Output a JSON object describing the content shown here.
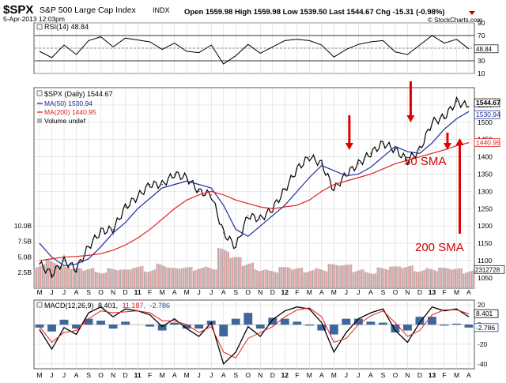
{
  "header": {
    "symbol": "$SPX",
    "name": "S&P 500 Large Cap Index",
    "exchange": "INDX",
    "datetime": "5-Apr-2013 12:03pm",
    "ohlc_text": "Open 1559.98  High 1559.98  Low 1539.50  Last 1544.67  Chg -15.31 (-0.98%)",
    "watermark": "© StockCharts.com"
  },
  "colors": {
    "price": "#000000",
    "ma50": "#1a2e9c",
    "ma200": "#e02020",
    "arrow": "#e00000",
    "macd_hist": "#1c4e8c"
  },
  "chart_data": [
    {
      "type": "line",
      "panel": "rsi",
      "label": "RSI(14) 48.84",
      "ylim": [
        10,
        90
      ],
      "yticks": [
        10,
        30,
        50,
        70,
        90
      ],
      "last_label": "48.84",
      "x": [
        "2010-05",
        "2010-06",
        "2010-07",
        "2010-08",
        "2010-09",
        "2010-10",
        "2010-11",
        "2010-12",
        "2011-01",
        "2011-02",
        "2011-03",
        "2011-04",
        "2011-05",
        "2011-06",
        "2011-07",
        "2011-08",
        "2011-09",
        "2011-10",
        "2011-11",
        "2011-12",
        "2012-01",
        "2012-02",
        "2012-03",
        "2012-04",
        "2012-05",
        "2012-06",
        "2012-07",
        "2012-08",
        "2012-09",
        "2012-10",
        "2012-11",
        "2012-12",
        "2013-01",
        "2013-02",
        "2013-03",
        "2013-04"
      ],
      "values": [
        45,
        35,
        55,
        40,
        62,
        68,
        52,
        66,
        63,
        60,
        48,
        58,
        45,
        43,
        55,
        25,
        38,
        56,
        42,
        52,
        62,
        64,
        62,
        55,
        36,
        48,
        56,
        60,
        62,
        44,
        40,
        55,
        70,
        58,
        64,
        49
      ]
    },
    {
      "type": "line",
      "panel": "price",
      "legend": [
        "$SPX (Daily) 1544.67",
        "MA(50) 1530.94",
        "MA(200) 1440.95",
        "Volume undef"
      ],
      "ylim": [
        1020,
        1600
      ],
      "yticks": [
        1050,
        1100,
        1150,
        1200,
        1250,
        1300,
        1350,
        1400,
        1450,
        1500,
        1550
      ],
      "price_badges": [
        "1544.67",
        "1530.94",
        "1440.95"
      ],
      "volume_ticks": [
        "2.5B",
        "5.0B",
        "7.5B",
        "10.0B"
      ],
      "volume_last": "2312728",
      "x": [
        "2010-05",
        "2010-06",
        "2010-07",
        "2010-08",
        "2010-09",
        "2010-10",
        "2010-11",
        "2010-12",
        "2011-01",
        "2011-02",
        "2011-03",
        "2011-04",
        "2011-05",
        "2011-06",
        "2011-07",
        "2011-08",
        "2011-09",
        "2011-10",
        "2011-11",
        "2011-12",
        "2012-01",
        "2012-02",
        "2012-03",
        "2012-04",
        "2012-05",
        "2012-06",
        "2012-07",
        "2012-08",
        "2012-09",
        "2012-10",
        "2012-11",
        "2012-12",
        "2013-01",
        "2013-02",
        "2013-03",
        "2013-04"
      ],
      "series": [
        {
          "name": "$SPX (Daily) 1544.67",
          "values": [
            1090,
            1060,
            1100,
            1075,
            1140,
            1185,
            1190,
            1255,
            1285,
            1320,
            1320,
            1350,
            1340,
            1300,
            1290,
            1180,
            1140,
            1230,
            1220,
            1250,
            1305,
            1365,
            1400,
            1380,
            1305,
            1350,
            1380,
            1410,
            1440,
            1420,
            1390,
            1420,
            1500,
            1515,
            1560,
            1545
          ]
        },
        {
          "name": "MA(50) 1530.94",
          "values": [
            1150,
            1110,
            1085,
            1090,
            1105,
            1140,
            1180,
            1210,
            1250,
            1280,
            1310,
            1320,
            1330,
            1320,
            1310,
            1260,
            1190,
            1170,
            1200,
            1230,
            1260,
            1300,
            1340,
            1375,
            1360,
            1345,
            1350,
            1370,
            1400,
            1430,
            1415,
            1410,
            1440,
            1480,
            1510,
            1531
          ]
        },
        {
          "name": "MA(200) 1440.95",
          "values": [
            1100,
            1105,
            1110,
            1112,
            1115,
            1120,
            1130,
            1145,
            1165,
            1190,
            1220,
            1250,
            1275,
            1290,
            1300,
            1290,
            1275,
            1265,
            1255,
            1250,
            1255,
            1260,
            1275,
            1300,
            1320,
            1330,
            1340,
            1350,
            1365,
            1380,
            1390,
            1400,
            1410,
            1420,
            1432,
            1441
          ]
        }
      ],
      "volume": [
        4.2,
        5.1,
        3.6,
        3.2,
        3.4,
        3.1,
        3.3,
        3.0,
        3.6,
        3.4,
        4.2,
        3.3,
        3.4,
        3.6,
        3.9,
        6.5,
        5.0,
        4.2,
        3.6,
        3.0,
        3.4,
        3.3,
        3.3,
        3.5,
        3.9,
        3.8,
        3.2,
        3.0,
        3.4,
        3.5,
        3.7,
        3.4,
        3.4,
        3.3,
        3.2,
        3.1
      ],
      "annotations": [
        {
          "text": "50 SMA",
          "points_to": "2012-06"
        },
        {
          "text": "200 SMA",
          "points_to": "2013-03"
        },
        {
          "text": "",
          "points_to": "2012-11"
        },
        {
          "text": "",
          "points_to": "2013-02"
        }
      ]
    },
    {
      "type": "line",
      "panel": "macd",
      "label": "MACD(12,26,9) 8.401, 11.187, -2.786",
      "label_parts": {
        "name": "MACD(12,26,9)",
        "macd": "8.401,",
        "signal": "11.187,",
        "hist": "-2.786"
      },
      "ylim": [
        -45,
        25
      ],
      "yticks": [
        -40,
        -20,
        0,
        20
      ],
      "badges": [
        "8.401",
        "-2.786"
      ],
      "x": [
        "2010-05",
        "2010-06",
        "2010-07",
        "2010-08",
        "2010-09",
        "2010-10",
        "2010-11",
        "2010-12",
        "2011-01",
        "2011-02",
        "2011-03",
        "2011-04",
        "2011-05",
        "2011-06",
        "2011-07",
        "2011-08",
        "2011-09",
        "2011-10",
        "2011-11",
        "2011-12",
        "2012-01",
        "2012-02",
        "2012-03",
        "2012-04",
        "2012-05",
        "2012-06",
        "2012-07",
        "2012-08",
        "2012-09",
        "2012-10",
        "2012-11",
        "2012-12",
        "2013-01",
        "2013-02",
        "2013-03",
        "2013-04"
      ],
      "series": [
        {
          "name": "MACD",
          "values": [
            -5,
            -25,
            -3,
            -10,
            12,
            18,
            8,
            16,
            14,
            10,
            -2,
            6,
            -4,
            -12,
            2,
            -40,
            -28,
            -2,
            -12,
            5,
            14,
            18,
            16,
            2,
            -28,
            -8,
            6,
            12,
            16,
            -6,
            -18,
            2,
            18,
            14,
            16,
            8
          ]
        },
        {
          "name": "Signal",
          "values": [
            -2,
            -18,
            -8,
            -6,
            6,
            14,
            12,
            13,
            14,
            12,
            4,
            4,
            0,
            -8,
            -2,
            -28,
            -34,
            -14,
            -8,
            -2,
            8,
            15,
            17,
            8,
            -18,
            -14,
            0,
            9,
            14,
            2,
            -12,
            -6,
            10,
            15,
            15,
            11
          ]
        }
      ]
    }
  ],
  "x_axis": {
    "month_labels": [
      "M",
      "J",
      "J",
      "A",
      "S",
      "O",
      "N",
      "D",
      "11",
      "F",
      "M",
      "A",
      "M",
      "J",
      "J",
      "A",
      "S",
      "O",
      "N",
      "D",
      "12",
      "F",
      "M",
      "A",
      "M",
      "J",
      "J",
      "A",
      "S",
      "O",
      "N",
      "D",
      "13",
      "F",
      "M",
      "A"
    ],
    "bold": [
      "11",
      "12",
      "13"
    ]
  }
}
